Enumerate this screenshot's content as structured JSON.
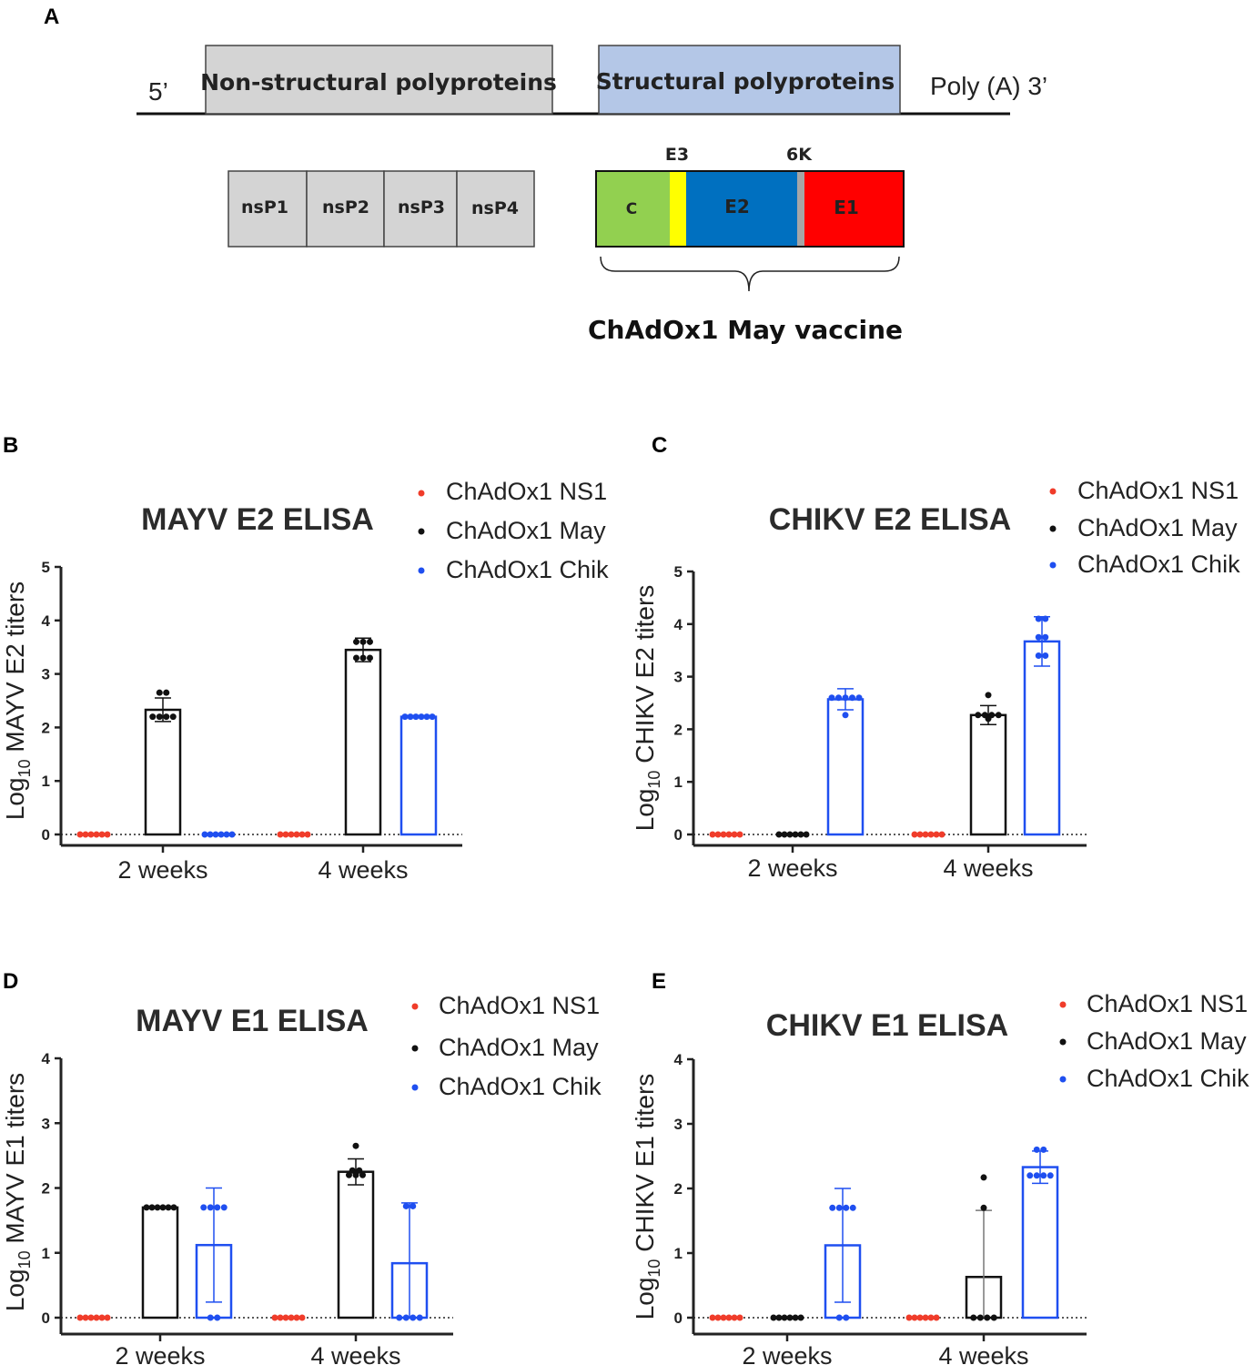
{
  "panel_a": {
    "letter": "A",
    "five_prime": "5’",
    "poly_a": "Poly (A) 3’",
    "nonstructural": "Non-structural polyproteins",
    "structural": "Structural polyproteins",
    "nsp": [
      "nsP1",
      "nsP2",
      "nsP3",
      "nsP4"
    ],
    "segments": {
      "c": "C",
      "e3": "E3",
      "e2": "E2",
      "k6": "6K",
      "e1": "E1"
    },
    "vaccine_label": "ChAdOx1 May vaccine",
    "colors": {
      "grey": "#d4d4d4",
      "blue": "#b4c7e7",
      "c": "#92d050",
      "e3": "#ffff00",
      "e2": "#0070c0",
      "k6": "#a6a6a6",
      "e1": "#ff0000"
    }
  },
  "legend": [
    {
      "label": "ChAdOx1 NS1",
      "color": "#f03c2a"
    },
    {
      "label": "ChAdOx1 May",
      "color": "#111111"
    },
    {
      "label": "ChAdOx1 Chik",
      "color": "#1f4ff0"
    }
  ],
  "chart_data": [
    {
      "panel": "B",
      "type": "bar",
      "title": "MAYV E2 ELISA",
      "ylabel_prefix": "Log",
      "ylabel_sub": "10",
      "ylabel_suffix": " MAYV E2 titers",
      "ylim": [
        0,
        5
      ],
      "yticks": [
        "0",
        "1",
        "2",
        "3",
        "4",
        "5"
      ],
      "categories": [
        "2 weeks",
        "4 weeks"
      ],
      "series": [
        {
          "name": "ChAdOx1 NS1",
          "values": [
            0,
            0
          ],
          "err": [
            0,
            0
          ],
          "points": [
            [
              0,
              0,
              0,
              0,
              0,
              0
            ],
            [
              0,
              0,
              0,
              0,
              0,
              0
            ]
          ]
        },
        {
          "name": "ChAdOx1 May",
          "values": [
            2.33,
            3.45
          ],
          "err": [
            0.22,
            0.22
          ],
          "points": [
            [
              2.65,
              2.65,
              2.2,
              2.2,
              2.2,
              2.2
            ],
            [
              3.6,
              3.6,
              3.6,
              3.3,
              3.3,
              3.3
            ]
          ]
        },
        {
          "name": "ChAdOx1 Chik",
          "values": [
            0,
            2.2
          ],
          "err": [
            0,
            0
          ],
          "points": [
            [
              0,
              0,
              0,
              0,
              0,
              0
            ],
            [
              2.2,
              2.2,
              2.2,
              2.2,
              2.2,
              2.2
            ]
          ]
        }
      ]
    },
    {
      "panel": "C",
      "type": "bar",
      "title": "CHIKV E2 ELISA",
      "ylabel_prefix": "Log",
      "ylabel_sub": "10",
      "ylabel_suffix": " CHIKV E2 titers",
      "ylim": [
        0,
        5
      ],
      "yticks": [
        "0",
        "1",
        "2",
        "3",
        "4",
        "5"
      ],
      "categories": [
        "2 weeks",
        "4 weeks"
      ],
      "series": [
        {
          "name": "ChAdOx1 NS1",
          "values": [
            0,
            0
          ],
          "err": [
            0,
            0
          ],
          "points": [
            [
              0,
              0,
              0,
              0,
              0,
              0
            ],
            [
              0,
              0,
              0,
              0,
              0,
              0
            ]
          ]
        },
        {
          "name": "ChAdOx1 May",
          "values": [
            0,
            2.27
          ],
          "err": [
            0,
            0.18
          ],
          "points": [
            [
              0,
              0,
              0,
              0,
              0,
              0
            ],
            [
              2.65,
              2.27,
              2.27,
              2.27,
              2.27,
              2.2
            ]
          ]
        },
        {
          "name": "ChAdOx1 Chik",
          "values": [
            2.57,
            3.67
          ],
          "err": [
            0.2,
            0.47
          ],
          "points": [
            [
              2.6,
              2.6,
              2.6,
              2.6,
              2.6,
              2.27
            ],
            [
              4.1,
              4.1,
              3.75,
              3.75,
              3.4,
              3.4
            ]
          ]
        }
      ]
    },
    {
      "panel": "D",
      "type": "bar",
      "title": "MAYV E1 ELISA",
      "ylabel_prefix": "Log",
      "ylabel_sub": "10",
      "ylabel_suffix": " MAYV E1 titers",
      "ylim": [
        0,
        4
      ],
      "yticks": [
        "0",
        "1",
        "2",
        "3",
        "4"
      ],
      "categories": [
        "2 weeks",
        "4 weeks"
      ],
      "series": [
        {
          "name": "ChAdOx1 NS1",
          "values": [
            0,
            0
          ],
          "err": [
            0,
            0
          ],
          "points": [
            [
              0,
              0,
              0,
              0,
              0,
              0
            ],
            [
              0,
              0,
              0,
              0,
              0,
              0
            ]
          ]
        },
        {
          "name": "ChAdOx1 May",
          "values": [
            1.7,
            2.25
          ],
          "err": [
            0,
            0.2
          ],
          "points": [
            [
              1.7,
              1.7,
              1.7,
              1.7,
              1.7,
              1.7
            ],
            [
              2.65,
              2.27,
              2.27,
              2.2,
              2.2,
              2.2
            ]
          ]
        },
        {
          "name": "ChAdOx1 Chik",
          "values": [
            1.12,
            0.84
          ],
          "err": [
            0.88,
            0.93
          ],
          "points": [
            [
              1.7,
              1.7,
              1.7,
              1.7,
              0,
              0
            ],
            [
              1.72,
              1.72,
              0,
              0,
              0,
              0
            ]
          ]
        }
      ]
    },
    {
      "panel": "E",
      "type": "bar",
      "title": "CHIKV E1 ELISA",
      "ylabel_prefix": "Log",
      "ylabel_sub": "10",
      "ylabel_suffix": " CHIKV E1 titers",
      "ylim": [
        0,
        4
      ],
      "yticks": [
        "0",
        "1",
        "2",
        "3",
        "4"
      ],
      "categories": [
        "2 weeks",
        "4 weeks"
      ],
      "series": [
        {
          "name": "ChAdOx1 NS1",
          "values": [
            0,
            0
          ],
          "err": [
            0,
            0
          ],
          "points": [
            [
              0,
              0,
              0,
              0,
              0,
              0
            ],
            [
              0,
              0,
              0,
              0,
              0,
              0
            ]
          ]
        },
        {
          "name": "ChAdOx1 May",
          "values": [
            0,
            0.63
          ],
          "err": [
            0,
            1.03
          ],
          "points": [
            [
              0,
              0,
              0,
              0,
              0,
              0
            ],
            [
              2.17,
              1.7,
              0,
              0,
              0,
              0
            ]
          ]
        },
        {
          "name": "ChAdOx1 Chik",
          "values": [
            1.12,
            2.33
          ],
          "err": [
            0.88,
            0.25
          ],
          "points": [
            [
              1.7,
              1.7,
              1.7,
              1.7,
              0,
              0
            ],
            [
              2.6,
              2.6,
              2.2,
              2.2,
              2.2,
              2.2
            ]
          ]
        }
      ]
    }
  ]
}
